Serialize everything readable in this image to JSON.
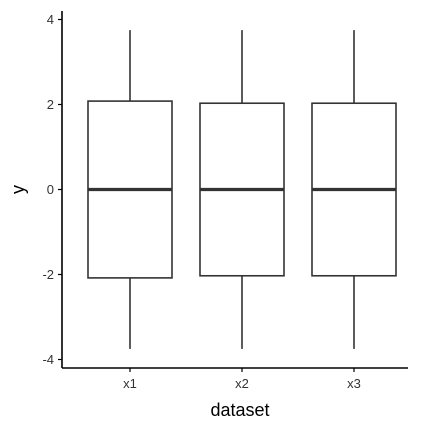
{
  "chart_data": {
    "type": "boxplot",
    "xlabel": "dataset",
    "ylabel": "y",
    "categories": [
      "x1",
      "x2",
      "x3"
    ],
    "ylim": [
      -4.2,
      4.2
    ],
    "yticks": [
      -4,
      -2,
      0,
      2,
      4
    ],
    "ytick_labels": [
      "-4",
      "-2",
      "0",
      "2",
      "4"
    ],
    "grid": false,
    "boxes": [
      {
        "category": "x1",
        "whisker_low": -3.75,
        "q1": -2.08,
        "median": 0.0,
        "q3": 2.08,
        "whisker_high": 3.75
      },
      {
        "category": "x2",
        "whisker_low": -3.75,
        "q1": -2.03,
        "median": 0.0,
        "q3": 2.03,
        "whisker_high": 3.75
      },
      {
        "category": "x3",
        "whisker_low": -3.75,
        "q1": -2.03,
        "median": 0.0,
        "q3": 2.03,
        "whisker_high": 3.75
      }
    ],
    "colors": {
      "box_stroke": "#333333",
      "box_fill": "#ffffff",
      "axis": "#000000"
    }
  }
}
